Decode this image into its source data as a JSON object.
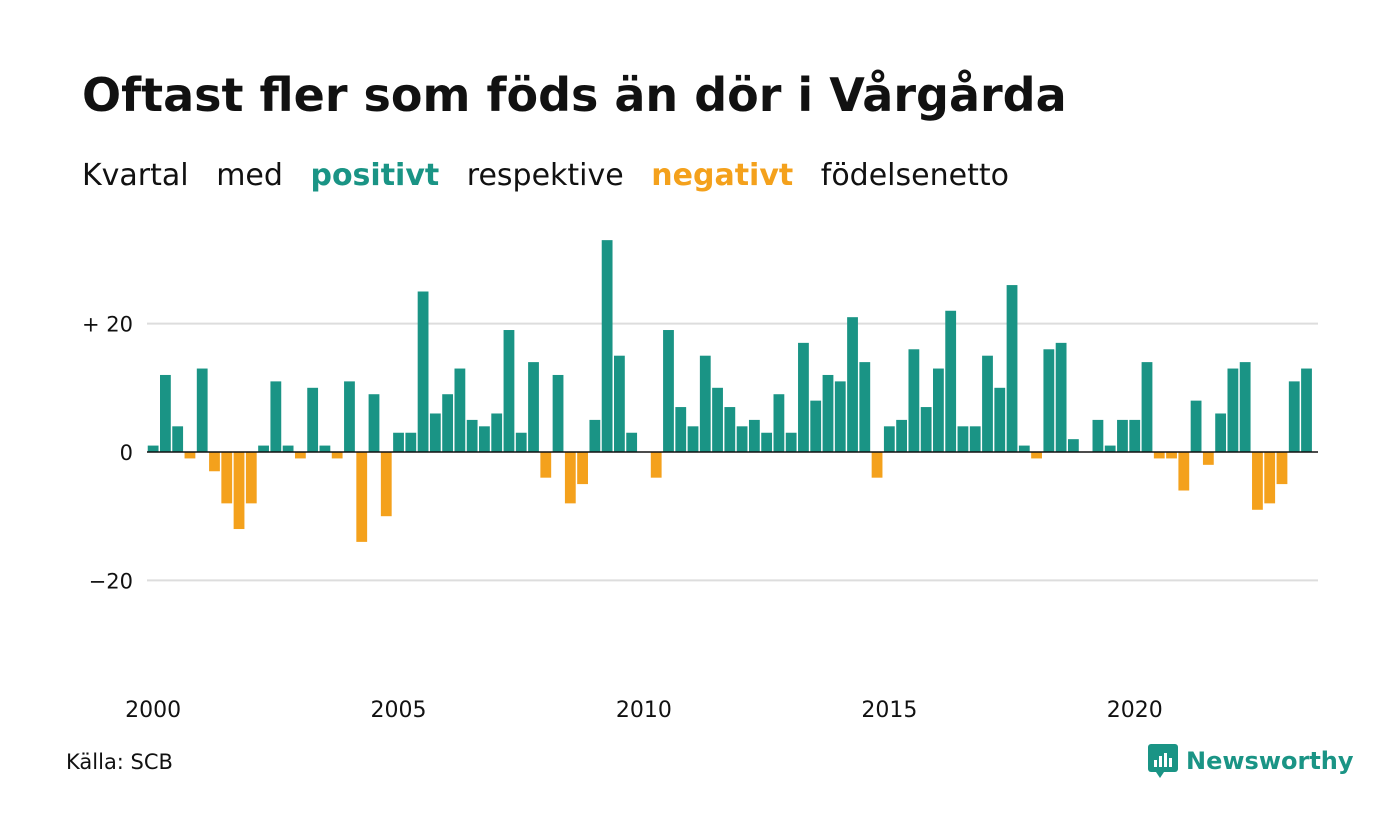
{
  "header": {
    "title": "Oftast fler som föds än dör i Vårgårda",
    "subtitle": {
      "w1": "Kvartal",
      "w2": "med",
      "positive": "positivt",
      "w3": "respektive",
      "negative": "negativt",
      "w4": "födelsenetto"
    }
  },
  "colors": {
    "positive": "#1a9485",
    "negative": "#f4a11c",
    "grid": "#dddddd",
    "axis": "#111111"
  },
  "chart_data": {
    "type": "bar",
    "x_start": "2000 Q1",
    "x_ticks": [
      "2000",
      "2005",
      "2010",
      "2015",
      "2020"
    ],
    "y_ticks": [
      {
        "value": 20,
        "label": "+ 20"
      },
      {
        "value": 0,
        "label": "0"
      },
      {
        "value": -20,
        "label": "−20"
      }
    ],
    "ylim": [
      -37,
      36
    ],
    "grid": true,
    "values": [
      1,
      12,
      4,
      -1,
      13,
      -3,
      -8,
      -12,
      -8,
      1,
      11,
      1,
      -1,
      10,
      1,
      -1,
      11,
      -14,
      9,
      -10,
      3,
      3,
      25,
      6,
      9,
      13,
      5,
      4,
      6,
      19,
      3,
      14,
      -4,
      12,
      -8,
      -5,
      5,
      33,
      15,
      3,
      0,
      -4,
      19,
      7,
      4,
      15,
      10,
      7,
      4,
      5,
      3,
      9,
      3,
      17,
      8,
      12,
      11,
      21,
      14,
      -4,
      4,
      5,
      16,
      7,
      13,
      22,
      4,
      4,
      15,
      10,
      26,
      1,
      -1,
      16,
      17,
      2,
      0,
      5,
      1,
      5,
      5,
      14,
      -1,
      -1,
      -6,
      8,
      -2,
      6,
      13,
      14,
      -9,
      -8,
      -5,
      11,
      13
    ]
  },
  "footer": {
    "source": "Källa: SCB",
    "brand": "Newsworthy",
    "logo_icon": "newsworthy-logo-icon"
  }
}
